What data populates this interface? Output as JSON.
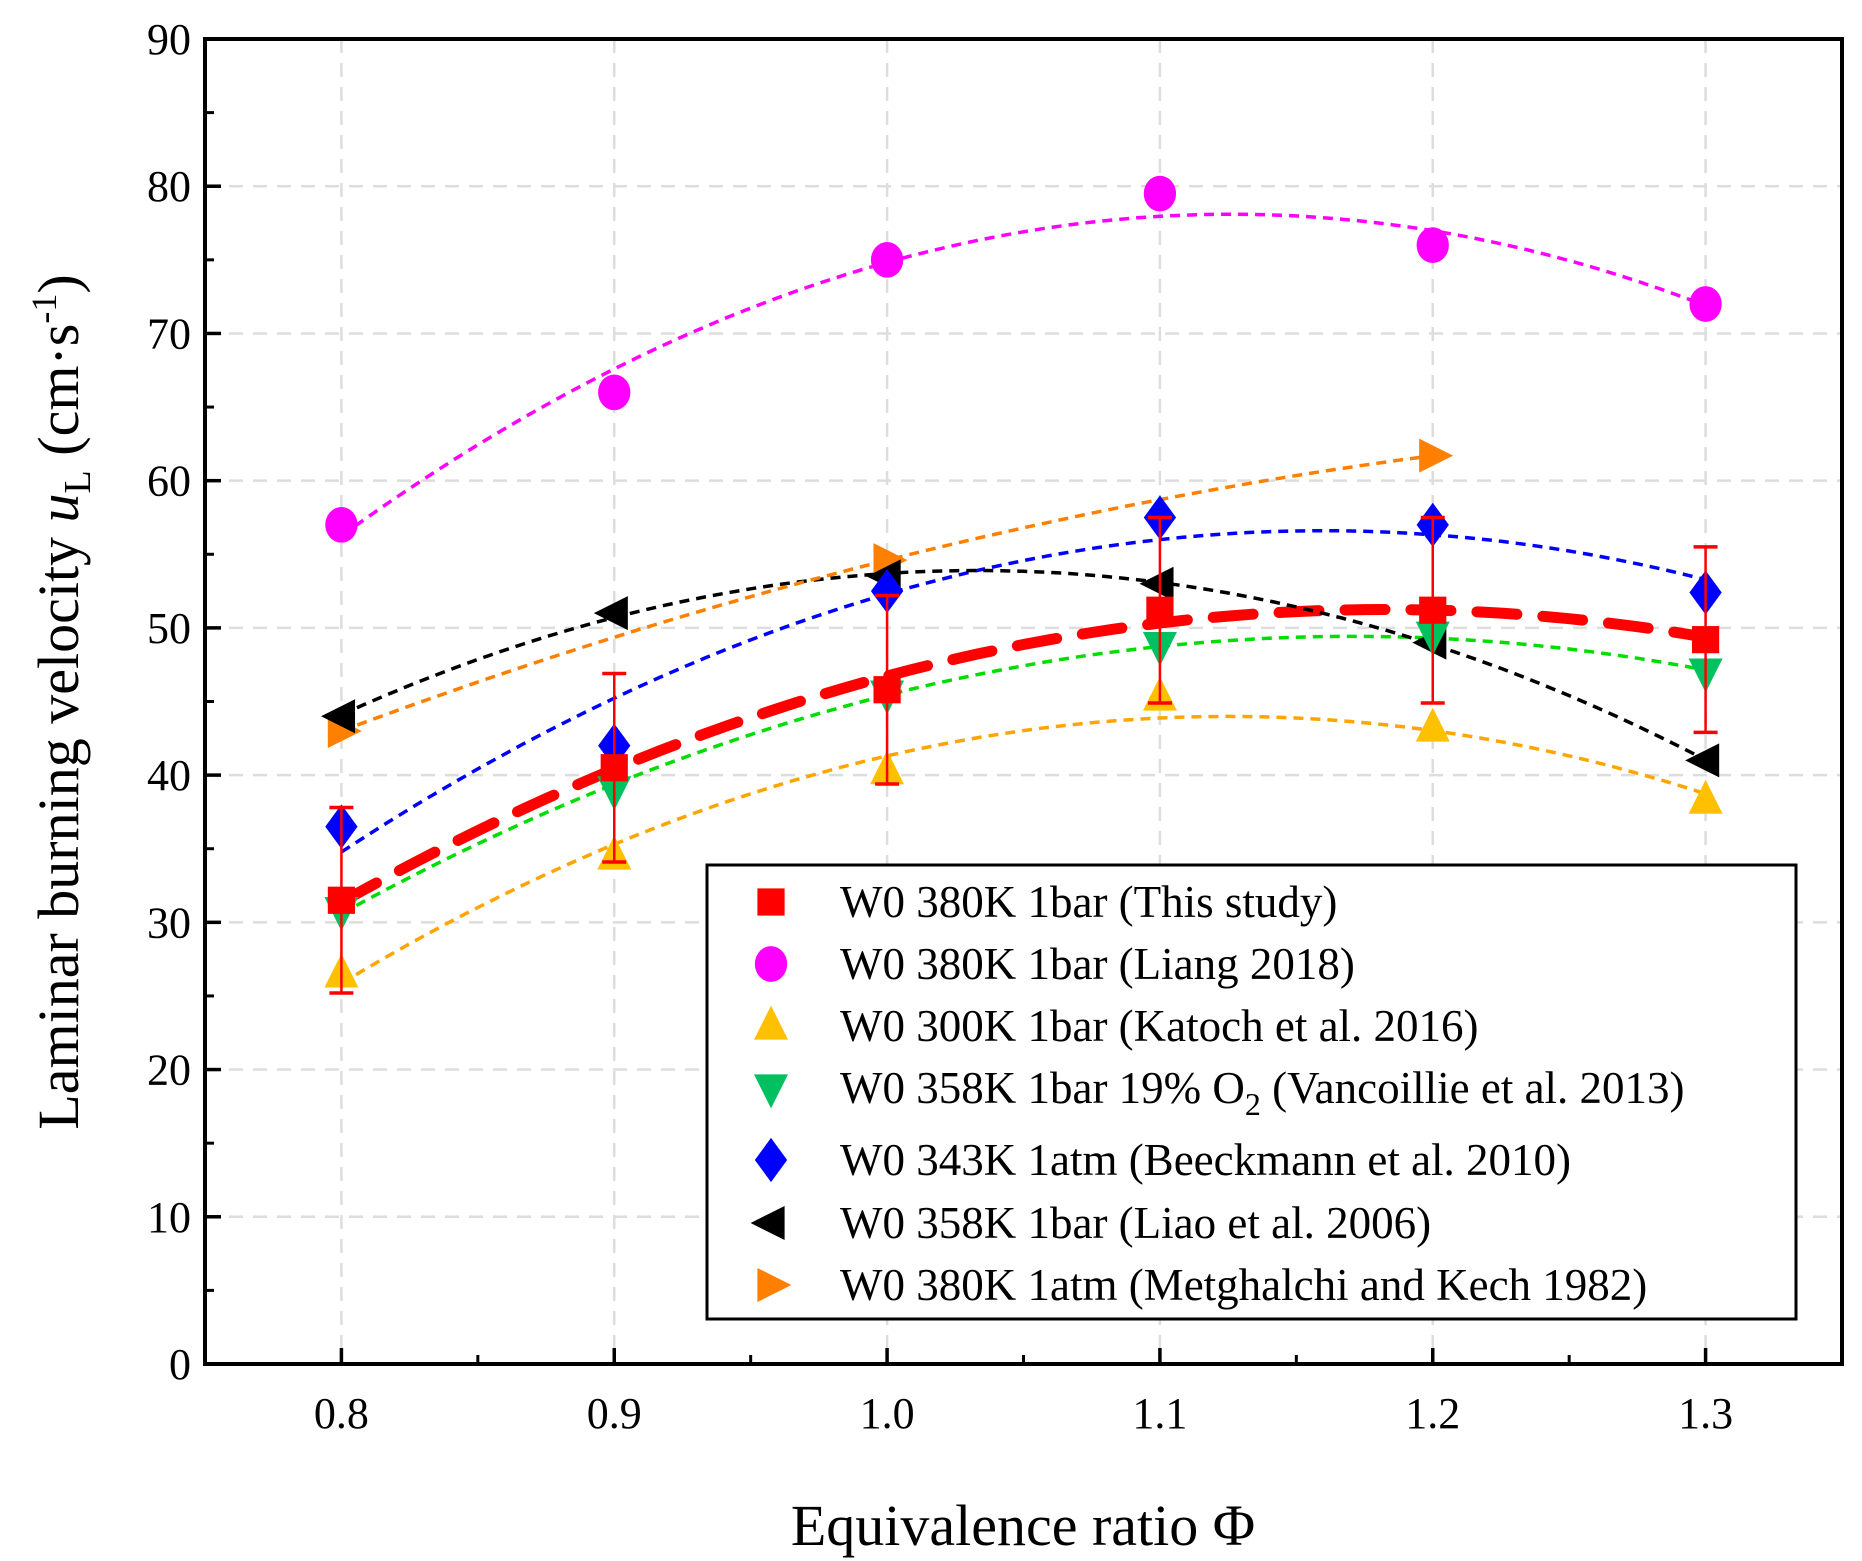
{
  "chart_data": {
    "type": "scatter",
    "xlabel": "Equivalence ratio Φ",
    "ylabel": {
      "main": "Laminar burning velocity ",
      "var": "u",
      "var_sub": "L",
      "unit_open": " (cm·s",
      "unit_sup": "-1",
      "unit_close": ")"
    },
    "xlim": [
      0.75,
      1.35
    ],
    "ylim": [
      0,
      90
    ],
    "xticks": [
      "0.8",
      "0.9",
      "1.0",
      "1.1",
      "1.2",
      "1.3"
    ],
    "yticks": [
      "0",
      "10",
      "20",
      "30",
      "40",
      "50",
      "60",
      "70",
      "80",
      "90"
    ],
    "grid": true,
    "legend_position": "bottom-right",
    "fit": "quadratic dashed trend line per series",
    "series": [
      {
        "name": "W0 380K 1bar (This study)",
        "label_parts": [
          "W0 380K 1bar (This study)"
        ],
        "marker": "square",
        "color": "#ff0000",
        "line_color": "#ff0000",
        "thick": true,
        "x": [
          0.8,
          0.9,
          1.0,
          1.1,
          1.2,
          1.3
        ],
        "y": [
          31.5,
          40.5,
          45.8,
          51.2,
          51.2,
          49.2
        ],
        "yerr": [
          6.3,
          6.4,
          6.4,
          6.3,
          6.3,
          6.3
        ]
      },
      {
        "name": "W0 380K 1bar (Liang 2018)",
        "label_parts": [
          "W0 380K 1bar (Liang 2018)"
        ],
        "marker": "circle",
        "color": "#ff00ff",
        "line_color": "#ff00ff",
        "x": [
          0.8,
          0.9,
          1.0,
          1.1,
          1.2,
          1.3
        ],
        "y": [
          57,
          66,
          75,
          79.5,
          76,
          72
        ]
      },
      {
        "name": "W0 300K 1bar (Katoch et al. 2016)",
        "label_parts": [
          "W0 300K 1bar (Katoch et al. 2016)"
        ],
        "marker": "triangle-up",
        "color": "#ffc000",
        "line_color": "#ffa500",
        "x": [
          0.8,
          0.9,
          1.0,
          1.1,
          1.2,
          1.3
        ],
        "y": [
          26.5,
          34.5,
          40.3,
          45.3,
          43.2,
          38.3
        ]
      },
      {
        "name": "W0 358K 1bar 19% O2 (Vancoillie et al. 2013)",
        "label_parts": [
          "W0 358K 1bar 19% O",
          "2",
          " (Vancoillie et al. 2013)"
        ],
        "marker": "triangle-down",
        "color": "#00c060",
        "line_color": "#00dd00",
        "x": [
          0.8,
          0.9,
          1.0,
          1.1,
          1.2,
          1.3
        ],
        "y": [
          30.8,
          39,
          45.5,
          48.8,
          49.5,
          47
        ]
      },
      {
        "name": "W0 343K 1atm (Beeckmann et al. 2010)",
        "label_parts": [
          "W0 343K 1atm (Beeckmann et al. 2010)"
        ],
        "marker": "diamond",
        "color": "#0000ff",
        "line_color": "#0000ff",
        "x": [
          0.8,
          0.9,
          1.0,
          1.1,
          1.2,
          1.3
        ],
        "y": [
          36.5,
          42,
          52.5,
          57.5,
          57,
          52.4
        ]
      },
      {
        "name": "W0 358K 1bar (Liao et al. 2006)",
        "label_parts": [
          "W0 358K 1bar (Liao et al. 2006)"
        ],
        "marker": "triangle-left",
        "color": "#000000",
        "line_color": "#000000",
        "x": [
          0.8,
          0.9,
          1.0,
          1.1,
          1.2,
          1.3
        ],
        "y": [
          44,
          51,
          53.5,
          53,
          49,
          41
        ]
      },
      {
        "name": "W0 380K 1atm (Metghalchi and Kech 1982)",
        "label_parts": [
          "W0 380K 1atm (Metghalchi and Kech 1982)"
        ],
        "marker": "triangle-right",
        "color": "#ff8000",
        "line_color": "#ff8000",
        "x": [
          0.8,
          1.0,
          1.2
        ],
        "y": [
          43,
          54.6,
          61.7
        ]
      }
    ]
  }
}
